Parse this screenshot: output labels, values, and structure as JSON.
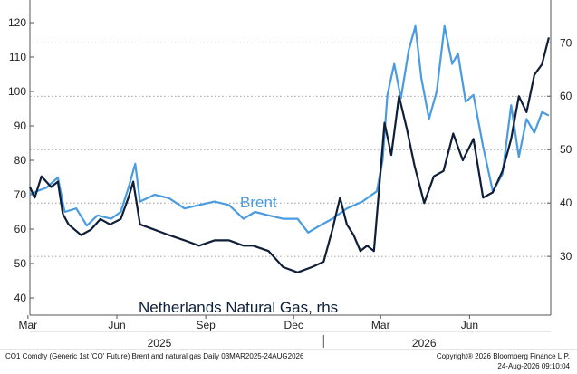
{
  "chart_data": {
    "type": "line",
    "title": "",
    "x_range": [
      "2025-03-03",
      "2026-08-24"
    ],
    "x_ticks": [
      {
        "label": "Mar",
        "date": "2025-03-01"
      },
      {
        "label": "Jun",
        "date": "2025-06-01"
      },
      {
        "label": "Sep",
        "date": "2025-09-01"
      },
      {
        "label": "Dec",
        "date": "2025-12-01"
      },
      {
        "label": "Mar",
        "date": "2026-03-01"
      },
      {
        "label": "Jun",
        "date": "2026-06-01"
      }
    ],
    "year_labels": [
      {
        "label": "2025",
        "date": "2025-07-15"
      },
      {
        "label": "2026",
        "date": "2026-04-15"
      }
    ],
    "y_left": {
      "range": [
        35,
        125
      ],
      "ticks": [
        40,
        50,
        60,
        70,
        80,
        90,
        100,
        110,
        120
      ]
    },
    "y_right": {
      "range": [
        19,
        77
      ],
      "ticks": [
        30,
        40,
        50,
        60,
        70
      ]
    },
    "grid": "dotted horizontal at right-axis ticks",
    "series": [
      {
        "name": "Brent",
        "axis": "left",
        "color": "#4a9be0",
        "points": [
          [
            "2025-03-03",
            70
          ],
          [
            "2025-03-10",
            71
          ],
          [
            "2025-03-20",
            72
          ],
          [
            "2025-04-01",
            75
          ],
          [
            "2025-04-08",
            65
          ],
          [
            "2025-04-20",
            66
          ],
          [
            "2025-05-01",
            61
          ],
          [
            "2025-05-12",
            64
          ],
          [
            "2025-05-26",
            63
          ],
          [
            "2025-06-05",
            65
          ],
          [
            "2025-06-13",
            72
          ],
          [
            "2025-06-20",
            79
          ],
          [
            "2025-06-25",
            68
          ],
          [
            "2025-07-10",
            70
          ],
          [
            "2025-07-25",
            69
          ],
          [
            "2025-08-10",
            66
          ],
          [
            "2025-08-25",
            67
          ],
          [
            "2025-09-10",
            68
          ],
          [
            "2025-09-25",
            67
          ],
          [
            "2025-10-10",
            63
          ],
          [
            "2025-10-22",
            65
          ],
          [
            "2025-11-05",
            64
          ],
          [
            "2025-11-20",
            63
          ],
          [
            "2025-12-05",
            63
          ],
          [
            "2025-12-16",
            59
          ],
          [
            "2025-12-28",
            61
          ],
          [
            "2026-01-10",
            63
          ],
          [
            "2026-01-25",
            66
          ],
          [
            "2026-02-10",
            68
          ],
          [
            "2026-02-25",
            71
          ],
          [
            "2026-03-03",
            80
          ],
          [
            "2026-03-08",
            99
          ],
          [
            "2026-03-15",
            108
          ],
          [
            "2026-03-22",
            98
          ],
          [
            "2026-03-30",
            112
          ],
          [
            "2026-04-06",
            119
          ],
          [
            "2026-04-12",
            104
          ],
          [
            "2026-04-20",
            92
          ],
          [
            "2026-04-28",
            100
          ],
          [
            "2026-05-06",
            119
          ],
          [
            "2026-05-14",
            108
          ],
          [
            "2026-05-20",
            111
          ],
          [
            "2026-05-28",
            97
          ],
          [
            "2026-06-05",
            99
          ],
          [
            "2026-06-15",
            84
          ],
          [
            "2026-06-25",
            71
          ],
          [
            "2026-07-05",
            76
          ],
          [
            "2026-07-14",
            96
          ],
          [
            "2026-07-22",
            81
          ],
          [
            "2026-07-30",
            92
          ],
          [
            "2026-08-07",
            88
          ],
          [
            "2026-08-15",
            94
          ],
          [
            "2026-08-22",
            93
          ]
        ]
      },
      {
        "name": "Netherlands Natural Gas, rhs",
        "axis": "right",
        "color": "#0f1f38",
        "points": [
          [
            "2025-03-03",
            43
          ],
          [
            "2025-03-08",
            41
          ],
          [
            "2025-03-15",
            45
          ],
          [
            "2025-03-25",
            43
          ],
          [
            "2025-04-01",
            44
          ],
          [
            "2025-04-06",
            38
          ],
          [
            "2025-04-12",
            36
          ],
          [
            "2025-04-25",
            34
          ],
          [
            "2025-05-05",
            35
          ],
          [
            "2025-05-15",
            37
          ],
          [
            "2025-05-25",
            36
          ],
          [
            "2025-06-05",
            37
          ],
          [
            "2025-06-13",
            41
          ],
          [
            "2025-06-18",
            44
          ],
          [
            "2025-06-25",
            36
          ],
          [
            "2025-07-10",
            35
          ],
          [
            "2025-07-25",
            34
          ],
          [
            "2025-08-10",
            33
          ],
          [
            "2025-08-25",
            32
          ],
          [
            "2025-09-10",
            33
          ],
          [
            "2025-09-25",
            33
          ],
          [
            "2025-10-10",
            32
          ],
          [
            "2025-10-20",
            32
          ],
          [
            "2025-11-05",
            31
          ],
          [
            "2025-11-20",
            28
          ],
          [
            "2025-12-05",
            27
          ],
          [
            "2025-12-20",
            28
          ],
          [
            "2026-01-01",
            29
          ],
          [
            "2026-01-10",
            35
          ],
          [
            "2026-01-18",
            41
          ],
          [
            "2026-01-25",
            36
          ],
          [
            "2026-02-01",
            34
          ],
          [
            "2026-02-08",
            31
          ],
          [
            "2026-02-15",
            32
          ],
          [
            "2026-02-22",
            31
          ],
          [
            "2026-02-28",
            44
          ],
          [
            "2026-03-05",
            55
          ],
          [
            "2026-03-12",
            49
          ],
          [
            "2026-03-20",
            60
          ],
          [
            "2026-03-28",
            54
          ],
          [
            "2026-04-05",
            47
          ],
          [
            "2026-04-15",
            40
          ],
          [
            "2026-04-25",
            45
          ],
          [
            "2026-05-05",
            46
          ],
          [
            "2026-05-15",
            53
          ],
          [
            "2026-05-25",
            48
          ],
          [
            "2026-06-05",
            52
          ],
          [
            "2026-06-15",
            41
          ],
          [
            "2026-06-25",
            42
          ],
          [
            "2026-07-05",
            46
          ],
          [
            "2026-07-14",
            52
          ],
          [
            "2026-07-22",
            60
          ],
          [
            "2026-07-30",
            57
          ],
          [
            "2026-08-07",
            64
          ],
          [
            "2026-08-15",
            66
          ],
          [
            "2026-08-22",
            71
          ]
        ]
      }
    ]
  },
  "footer": {
    "left": "CO1 Comdty (Generic 1st 'CO' Future) Brent and natural gas Daily 03MAR2025-24AUG2026",
    "right": "Copyright® 2026 Bloomberg Finance L.P.",
    "timestamp": "24-Aug-2026 09:10:04"
  },
  "colors": {
    "brent": "#4a9be0",
    "gas": "#0f1f38",
    "axis": "#555555",
    "grid": "#888888"
  }
}
